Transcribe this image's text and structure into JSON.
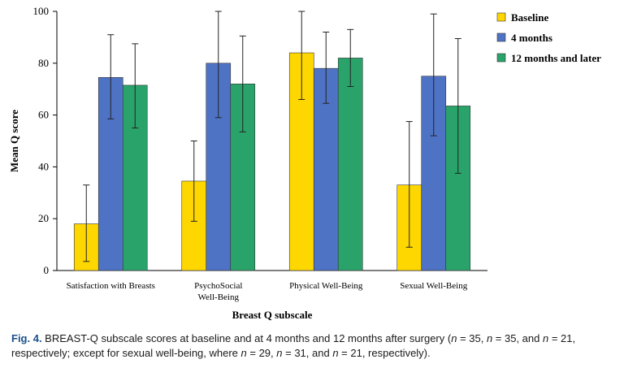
{
  "chart_data": {
    "type": "bar",
    "categories": [
      "Satisfaction with Breasts",
      "PsychoSocial\nWell-Being",
      "Physical Well-Being",
      "Sexual Well-Being"
    ],
    "series": [
      {
        "name": "Baseline",
        "color": "#ffd700",
        "values": [
          18,
          34.5,
          84,
          33
        ],
        "error_low": [
          3.5,
          19,
          66,
          9
        ],
        "error_high": [
          33,
          50,
          100,
          57.5
        ]
      },
      {
        "name": "4 months",
        "color": "#4f73c4",
        "values": [
          74.5,
          80,
          78,
          75
        ],
        "error_low": [
          58.5,
          59,
          64.5,
          52
        ],
        "error_high": [
          91,
          100,
          92,
          99
        ]
      },
      {
        "name": "12 months and later",
        "color": "#2aa36b",
        "values": [
          71.5,
          72,
          82,
          63.5
        ],
        "error_low": [
          55,
          53.5,
          71,
          37.5
        ],
        "error_high": [
          87.5,
          90.5,
          93,
          89.5
        ]
      }
    ],
    "ylim": [
      0,
      100
    ],
    "yticks": [
      "0",
      "20",
      "40",
      "60",
      "80",
      "100"
    ],
    "xlabel": "Breast Q subscale",
    "ylabel": "Mean Q score"
  },
  "caption": {
    "label": "Fig. 4.",
    "text_1": " BREAST-Q subscale scores at baseline and at 4 months and 12 months after surgery (",
    "n1": "n",
    "t1": " = 35, ",
    "n2": "n",
    "t2": " = 35, and ",
    "n3": "n",
    "t3": " = 21, respectively; except for sexual well-being, where ",
    "n4": "n",
    "t4": " = 29, ",
    "n5": "n",
    "t5": " = 31, and ",
    "n6": "n",
    "t6": " = 21, respectively)."
  }
}
